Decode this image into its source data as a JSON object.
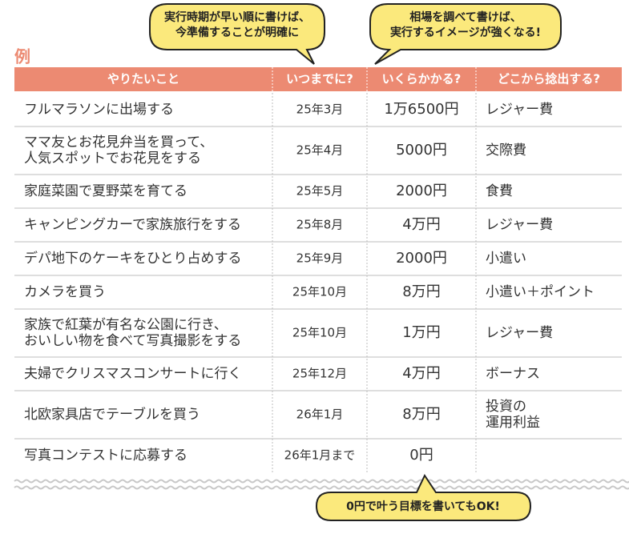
{
  "callouts": [
    {
      "lines": [
        "実行時期が早い順に書けば、",
        "今準備することが明確に"
      ]
    },
    {
      "lines": [
        "相場を調べて書けば、",
        "実行するイメージが強くなる!"
      ]
    },
    {
      "lines": [
        "0円で叶う目標を書いてもOK!"
      ]
    }
  ],
  "example_label": "例",
  "table": {
    "columns": [
      "やりたいこと",
      "いつまでに?",
      "いくらかかる?",
      "どこから捻出する?"
    ],
    "rows": [
      [
        [
          "フルマラソンに出場する"
        ],
        [
          "25年3月"
        ],
        [
          "1万6500円"
        ],
        [
          "レジャー費"
        ]
      ],
      [
        [
          "ママ友とお花見弁当を買って、",
          "人気スポットでお花見をする"
        ],
        [
          "25年4月"
        ],
        [
          "5000円"
        ],
        [
          "交際費"
        ]
      ],
      [
        [
          "家庭菜園で夏野菜を育てる"
        ],
        [
          "25年5月"
        ],
        [
          "2000円"
        ],
        [
          "食費"
        ]
      ],
      [
        [
          "キャンピングカーで家族旅行をする"
        ],
        [
          "25年8月"
        ],
        [
          "4万円"
        ],
        [
          "レジャー費"
        ]
      ],
      [
        [
          "デパ地下のケーキをひとり占めする"
        ],
        [
          "25年9月"
        ],
        [
          "2000円"
        ],
        [
          "小遣い"
        ]
      ],
      [
        [
          "カメラを買う"
        ],
        [
          "25年10月"
        ],
        [
          "8万円"
        ],
        [
          "小遣い＋ポイント"
        ]
      ],
      [
        [
          "家族で紅葉が有名な公園に行き、",
          "おいしい物を食べて写真撮影をする"
        ],
        [
          "25年10月"
        ],
        [
          "1万円"
        ],
        [
          "レジャー費"
        ]
      ],
      [
        [
          "夫婦でクリスマスコンサートに行く"
        ],
        [
          "25年12月"
        ],
        [
          "4万円"
        ],
        [
          "ボーナス"
        ]
      ],
      [
        [
          "北欧家具店でテーブルを買う"
        ],
        [
          "26年1月"
        ],
        [
          "8万円"
        ],
        [
          "投資の",
          "運用利益"
        ]
      ],
      [
        [
          "写真コンテストに応募する"
        ],
        [
          "26年1月まで"
        ],
        [
          "0円"
        ],
        []
      ]
    ]
  }
}
